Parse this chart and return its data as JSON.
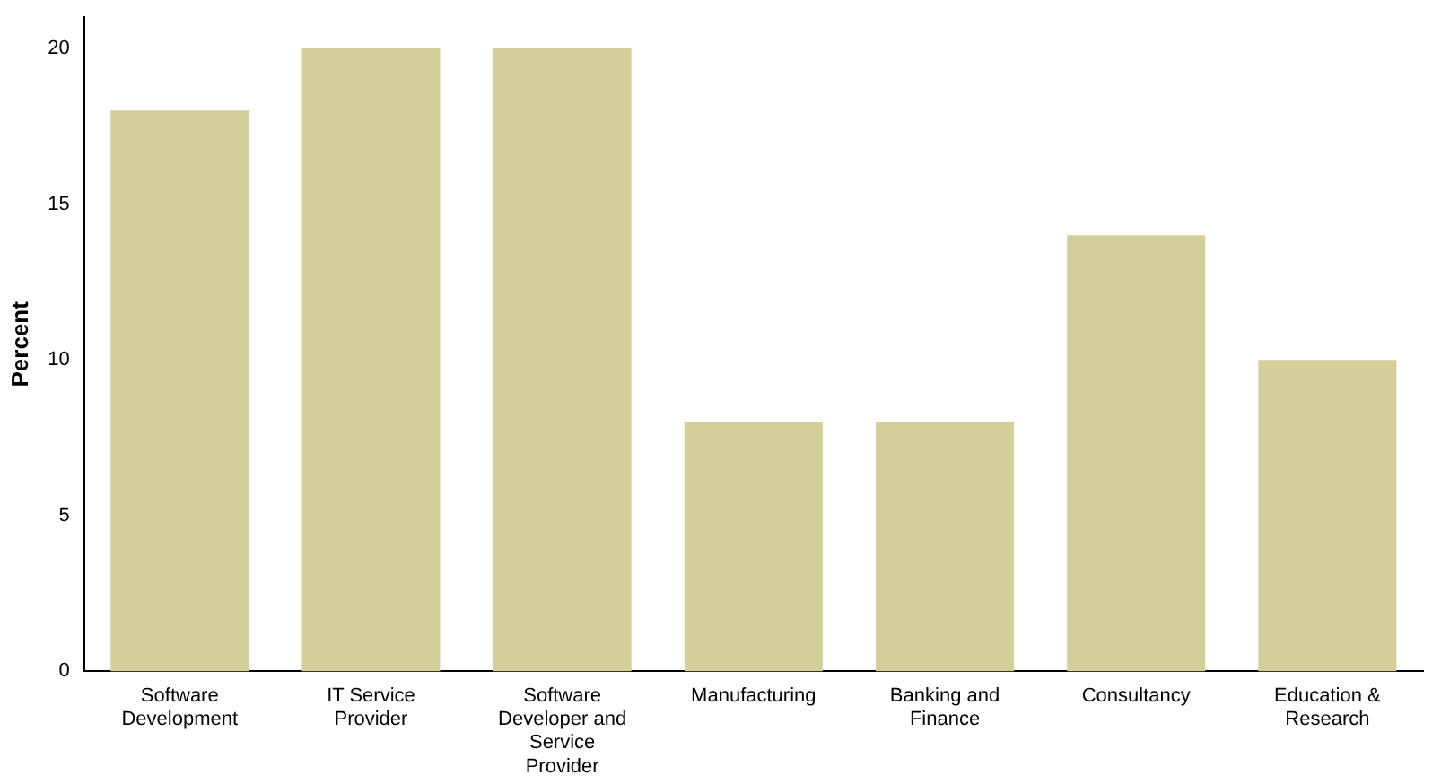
{
  "chart_data": {
    "type": "bar",
    "ylabel": "Percent",
    "categories": [
      "Software Development",
      "IT Service Provider",
      "Software Developer and Service Provider",
      "Manufacturing",
      "Banking and Finance",
      "Consultancy",
      "Education & Research"
    ],
    "values": [
      18,
      20,
      20,
      8,
      8,
      14,
      10
    ],
    "color": "#d4cf98",
    "ylim": [
      0,
      21
    ],
    "yticks": [
      0,
      5,
      10,
      15,
      20
    ],
    "grid": false,
    "legend": false
  }
}
